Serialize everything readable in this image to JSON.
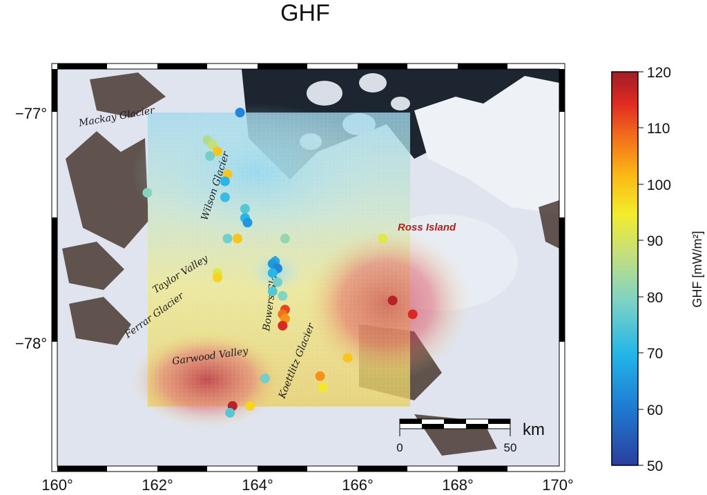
{
  "title": "GHF",
  "axes": {
    "lon_ticks": [
      "160°",
      "162°",
      "164°",
      "166°",
      "168°",
      "170°"
    ],
    "lat_ticks": [
      "−77°",
      "−78°"
    ]
  },
  "places": {
    "mackay": "Mackay Glacier",
    "wilson": "Wilson Glacier",
    "taylor": "Taylor Valley",
    "ferrar": "Ferrar Glacier",
    "bowers": "Bowers Glacier",
    "garwood": "Garwood Valley",
    "koettlitz": "Koettlitz Glacier",
    "ross": "Ross Island"
  },
  "scalebar": {
    "unit": "km",
    "min": "0",
    "max": "50"
  },
  "colorbar": {
    "label": "GHF [mW/m²]",
    "ticks": [
      "120",
      "110",
      "100",
      "90",
      "80",
      "70",
      "60",
      "50"
    ],
    "min": 50,
    "max": 120
  },
  "colors": {
    "ross_label": "#b02020"
  },
  "chart_data": {
    "type": "scatter",
    "title": "GHF",
    "xlabel": "",
    "ylabel": "",
    "xlim": [
      160,
      170
    ],
    "ylim": [
      -78.5,
      -76.8
    ],
    "value_label": "GHF [mW/m²]",
    "points": [
      {
        "x": 163.65,
        "y": -77.0,
        "v": 62
      },
      {
        "x": 163.0,
        "y": -77.12,
        "v": 85
      },
      {
        "x": 163.1,
        "y": -77.14,
        "v": 88
      },
      {
        "x": 163.2,
        "y": -77.17,
        "v": 100
      },
      {
        "x": 163.05,
        "y": -77.19,
        "v": 78
      },
      {
        "x": 163.4,
        "y": -77.27,
        "v": 100
      },
      {
        "x": 163.35,
        "y": -77.3,
        "v": 70
      },
      {
        "x": 161.8,
        "y": -77.35,
        "v": 80
      },
      {
        "x": 163.35,
        "y": -77.37,
        "v": 72
      },
      {
        "x": 163.75,
        "y": -77.42,
        "v": 75
      },
      {
        "x": 163.75,
        "y": -77.46,
        "v": 70
      },
      {
        "x": 163.8,
        "y": -77.48,
        "v": 65
      },
      {
        "x": 163.4,
        "y": -77.55,
        "v": 78
      },
      {
        "x": 163.6,
        "y": -77.55,
        "v": 100
      },
      {
        "x": 164.55,
        "y": -77.55,
        "v": 82
      },
      {
        "x": 166.5,
        "y": -77.55,
        "v": 92
      },
      {
        "x": 164.35,
        "y": -77.65,
        "v": 68
      },
      {
        "x": 164.3,
        "y": -77.66,
        "v": 65
      },
      {
        "x": 164.4,
        "y": -77.68,
        "v": 62
      },
      {
        "x": 164.3,
        "y": -77.7,
        "v": 70
      },
      {
        "x": 163.2,
        "y": -77.7,
        "v": 92
      },
      {
        "x": 163.2,
        "y": -77.72,
        "v": 98
      },
      {
        "x": 164.4,
        "y": -77.74,
        "v": 78
      },
      {
        "x": 164.3,
        "y": -77.78,
        "v": 75
      },
      {
        "x": 164.5,
        "y": -77.8,
        "v": 80
      },
      {
        "x": 166.7,
        "y": -77.82,
        "v": 118
      },
      {
        "x": 164.55,
        "y": -77.86,
        "v": 112
      },
      {
        "x": 164.5,
        "y": -77.88,
        "v": 108
      },
      {
        "x": 164.55,
        "y": -77.9,
        "v": 105
      },
      {
        "x": 167.1,
        "y": -77.88,
        "v": 115
      },
      {
        "x": 164.5,
        "y": -77.93,
        "v": 115
      },
      {
        "x": 165.8,
        "y": -78.07,
        "v": 100
      },
      {
        "x": 165.25,
        "y": -78.15,
        "v": 105
      },
      {
        "x": 164.15,
        "y": -78.16,
        "v": 78
      },
      {
        "x": 165.3,
        "y": -78.2,
        "v": 95
      },
      {
        "x": 163.5,
        "y": -78.28,
        "v": 118
      },
      {
        "x": 163.85,
        "y": -78.28,
        "v": 98
      },
      {
        "x": 163.45,
        "y": -78.31,
        "v": 75
      }
    ]
  }
}
